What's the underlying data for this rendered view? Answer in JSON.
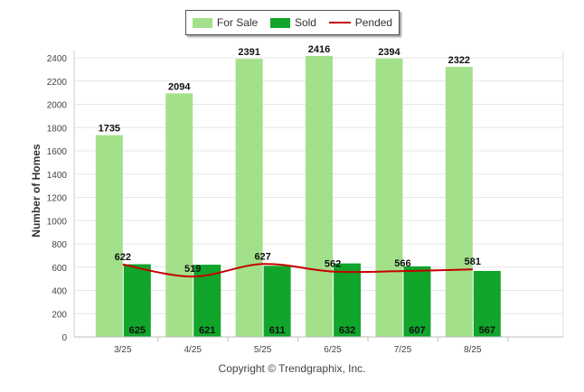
{
  "chart_data": {
    "type": "bar",
    "categories": [
      "3/25",
      "4/25",
      "5/25",
      "6/25",
      "7/25",
      "8/25"
    ],
    "series": [
      {
        "name": "For Sale",
        "type": "bar",
        "color": "#a3e08a",
        "values": [
          1735,
          2094,
          2391,
          2416,
          2394,
          2322
        ]
      },
      {
        "name": "Sold",
        "type": "bar",
        "color": "#11a52b",
        "values": [
          625,
          621,
          611,
          632,
          607,
          567
        ]
      },
      {
        "name": "Pended",
        "type": "line",
        "color": "#c40000",
        "values": [
          622,
          519,
          627,
          562,
          566,
          581
        ]
      }
    ],
    "ylabel": "Number of Homes",
    "xlabel": "",
    "ylim": [
      0,
      2400
    ],
    "yticks": [
      0,
      200,
      400,
      600,
      800,
      1000,
      1200,
      1400,
      1600,
      1800,
      2000,
      2200,
      2400
    ],
    "grid": true,
    "legend_position": "top-center"
  },
  "legend": {
    "for_sale": "For Sale",
    "sold": "Sold",
    "pended": "Pended"
  },
  "copyright": "Copyright © Trendgraphix, Inc."
}
